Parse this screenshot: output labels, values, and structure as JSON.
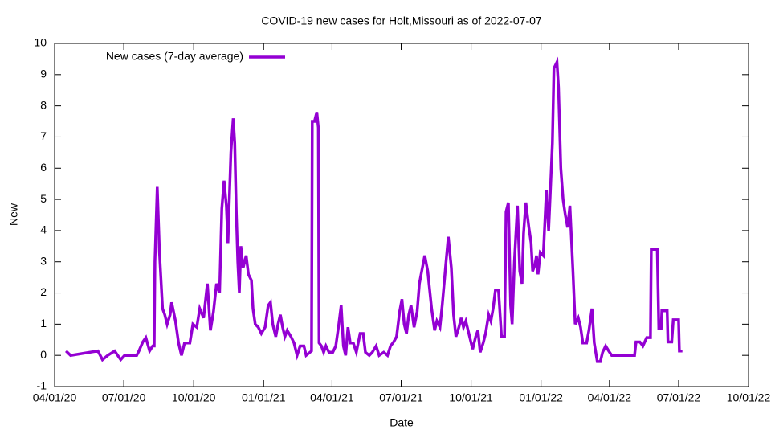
{
  "chart_data": {
    "type": "line",
    "title": "COVID-19 new cases for Holt,Missouri as of 2022-07-07",
    "x_label": "Date",
    "y_label": "New",
    "legend": "top-left",
    "xlim": [
      "2020-04-01",
      "2022-10-01"
    ],
    "xticks": [
      {
        "value": "2020-04-01",
        "label": "04/01/20"
      },
      {
        "value": "2020-07-01",
        "label": "07/01/20"
      },
      {
        "value": "2020-10-01",
        "label": "10/01/20"
      },
      {
        "value": "2021-01-01",
        "label": "01/01/21"
      },
      {
        "value": "2021-04-01",
        "label": "04/01/21"
      },
      {
        "value": "2021-07-01",
        "label": "07/01/21"
      },
      {
        "value": "2021-10-01",
        "label": "10/01/21"
      },
      {
        "value": "2022-01-01",
        "label": "01/01/22"
      },
      {
        "value": "2022-04-01",
        "label": "04/01/22"
      },
      {
        "value": "2022-07-01",
        "label": "07/01/22"
      },
      {
        "value": "2022-10-01",
        "label": "10/01/22"
      }
    ],
    "ylim": [
      -1,
      10
    ],
    "yticks": [
      -1,
      0,
      1,
      2,
      3,
      4,
      5,
      6,
      7,
      8,
      9,
      10
    ],
    "x": [
      "2020-04-16",
      "2020-04-22",
      "2020-05-28",
      "2020-06-03",
      "2020-06-10",
      "2020-06-19",
      "2020-06-27",
      "2020-07-02",
      "2020-07-18",
      "2020-07-21",
      "2020-07-26",
      "2020-07-30",
      "2020-08-04",
      "2020-08-08",
      "2020-08-10",
      "2020-08-11",
      "2020-08-14",
      "2020-08-17",
      "2020-08-21",
      "2020-08-24",
      "2020-08-27",
      "2020-08-31",
      "2020-09-02",
      "2020-09-07",
      "2020-09-11",
      "2020-09-15",
      "2020-09-19",
      "2020-09-26",
      "2020-09-30",
      "2020-10-05",
      "2020-10-09",
      "2020-10-14",
      "2020-10-19",
      "2020-10-23",
      "2020-10-27",
      "2020-10-31",
      "2020-11-04",
      "2020-11-07",
      "2020-11-10",
      "2020-11-13",
      "2020-11-15",
      "2020-11-17",
      "2020-11-19",
      "2020-11-22",
      "2020-11-24",
      "2020-11-26",
      "2020-11-28",
      "2020-11-30",
      "2020-12-02",
      "2020-12-05",
      "2020-12-09",
      "2020-12-12",
      "2020-12-16",
      "2020-12-18",
      "2020-12-21",
      "2020-12-25",
      "2020-12-29",
      "2021-01-03",
      "2021-01-07",
      "2021-01-10",
      "2021-01-13",
      "2021-01-17",
      "2021-01-20",
      "2021-01-23",
      "2021-01-26",
      "2021-01-29",
      "2021-02-01",
      "2021-02-06",
      "2021-02-10",
      "2021-02-14",
      "2021-02-18",
      "2021-02-23",
      "2021-02-26",
      "2021-03-03",
      "2021-03-05",
      "2021-03-06",
      "2021-03-09",
      "2021-03-12",
      "2021-03-14",
      "2021-03-15",
      "2021-03-18",
      "2021-03-21",
      "2021-03-24",
      "2021-03-28",
      "2021-04-02",
      "2021-04-06",
      "2021-04-10",
      "2021-04-13",
      "2021-04-16",
      "2021-04-19",
      "2021-04-22",
      "2021-04-25",
      "2021-04-29",
      "2021-05-03",
      "2021-05-08",
      "2021-05-12",
      "2021-05-15",
      "2021-05-20",
      "2021-05-24",
      "2021-05-29",
      "2021-06-02",
      "2021-06-08",
      "2021-06-13",
      "2021-06-17",
      "2021-06-21",
      "2021-06-25",
      "2021-06-29",
      "2021-07-02",
      "2021-07-05",
      "2021-07-08",
      "2021-07-11",
      "2021-07-14",
      "2021-07-18",
      "2021-07-22",
      "2021-07-25",
      "2021-07-28",
      "2021-08-01",
      "2021-08-05",
      "2021-08-10",
      "2021-08-14",
      "2021-08-17",
      "2021-08-21",
      "2021-08-24",
      "2021-08-29",
      "2021-09-01",
      "2021-09-05",
      "2021-09-08",
      "2021-09-11",
      "2021-09-15",
      "2021-09-18",
      "2021-09-21",
      "2021-09-24",
      "2021-09-28",
      "2021-10-03",
      "2021-10-07",
      "2021-10-10",
      "2021-10-13",
      "2021-10-17",
      "2021-10-20",
      "2021-10-24",
      "2021-10-27",
      "2021-10-30",
      "2021-11-02",
      "2021-11-06",
      "2021-11-10",
      "2021-11-14",
      "2021-11-16",
      "2021-11-19",
      "2021-11-22",
      "2021-11-24",
      "2021-11-27",
      "2021-12-01",
      "2021-12-04",
      "2021-12-07",
      "2021-12-09",
      "2021-12-12",
      "2021-12-16",
      "2021-12-19",
      "2021-12-21",
      "2021-12-24",
      "2021-12-26",
      "2021-12-28",
      "2021-12-31",
      "2022-01-04",
      "2022-01-08",
      "2022-01-11",
      "2022-01-13",
      "2022-01-16",
      "2022-01-18",
      "2022-01-22",
      "2022-01-24",
      "2022-01-27",
      "2022-01-30",
      "2022-02-02",
      "2022-02-05",
      "2022-02-08",
      "2022-02-12",
      "2022-02-15",
      "2022-02-19",
      "2022-02-22",
      "2022-02-25",
      "2022-03-02",
      "2022-03-05",
      "2022-03-09",
      "2022-03-12",
      "2022-03-16",
      "2022-03-20",
      "2022-03-23",
      "2022-03-27",
      "2022-03-31",
      "2022-04-04",
      "2022-05-04",
      "2022-05-06",
      "2022-05-11",
      "2022-05-15",
      "2022-05-20",
      "2022-05-25",
      "2022-05-26",
      "2022-06-03",
      "2022-06-05",
      "2022-06-08",
      "2022-06-09",
      "2022-06-16",
      "2022-06-17",
      "2022-06-22",
      "2022-06-24",
      "2022-07-01",
      "2022-07-02",
      "2022-07-06"
    ],
    "series": [
      {
        "name": "New cases (7-day average)",
        "color": "#9400d3",
        "values": [
          0.14,
          0,
          0.14,
          -0.14,
          0,
          0.14,
          -0.14,
          0,
          0,
          0.14,
          0.43,
          0.57,
          0.14,
          0.3,
          0.3,
          3,
          5.4,
          3.3,
          1.5,
          1.3,
          1.0,
          1.3,
          1.7,
          1.1,
          0.4,
          0,
          0.4,
          0.4,
          1.0,
          0.9,
          1.5,
          1.2,
          2.3,
          0.8,
          1.4,
          2.3,
          2.0,
          4.7,
          5.6,
          4.8,
          3.6,
          5.1,
          6.5,
          7.6,
          6.8,
          4.6,
          3.0,
          2.0,
          3.5,
          2.8,
          3.2,
          2.6,
          2.4,
          1.5,
          1.0,
          0.9,
          0.7,
          0.9,
          1.6,
          1.7,
          1.0,
          0.6,
          1.0,
          1.3,
          0.9,
          0.6,
          0.8,
          0.6,
          0.4,
          0,
          0.3,
          0.3,
          0,
          0.1,
          0.14,
          7.5,
          7.5,
          7.8,
          7.3,
          0.4,
          0.3,
          0.1,
          0.3,
          0.1,
          0.1,
          0.3,
          1.0,
          1.6,
          0.3,
          0,
          0.9,
          0.4,
          0.4,
          0.1,
          0.7,
          0.7,
          0.1,
          0,
          0.1,
          0.3,
          0,
          0.1,
          0,
          0.3,
          0.43,
          0.6,
          1.4,
          1.8,
          1.0,
          0.7,
          1.3,
          1.6,
          0.9,
          1.4,
          2.3,
          2.7,
          3.2,
          2.7,
          1.5,
          0.8,
          1.1,
          0.9,
          1.6,
          3.0,
          3.8,
          2.8,
          1.3,
          0.6,
          0.9,
          1.2,
          0.9,
          1.1,
          0.7,
          0.2,
          0.6,
          0.8,
          0.1,
          0.4,
          0.7,
          1.3,
          1.1,
          1.5,
          2.1,
          2.1,
          0.6,
          0.6,
          4.6,
          4.9,
          1.6,
          1.0,
          3.0,
          4.8,
          2.7,
          2.3,
          3.9,
          4.9,
          4.1,
          3.6,
          2.7,
          2.9,
          3.2,
          2.6,
          3.3,
          3.2,
          5.3,
          4.0,
          5.1,
          6.8,
          9.2,
          9.4,
          8.6,
          6.0,
          5.0,
          4.5,
          4.1,
          4.8,
          2.7,
          1.0,
          1.2,
          0.9,
          0.4,
          0.4,
          0.8,
          1.5,
          0.4,
          -0.2,
          -0.2,
          0.1,
          0.3,
          0.14,
          0,
          0,
          0.43,
          0.43,
          0.3,
          0.57,
          0.57,
          3.4,
          3.4,
          0.86,
          0.86,
          1.43,
          1.43,
          0.43,
          0.43,
          1.14,
          1.14,
          0.14,
          0.14
        ]
      }
    ]
  }
}
